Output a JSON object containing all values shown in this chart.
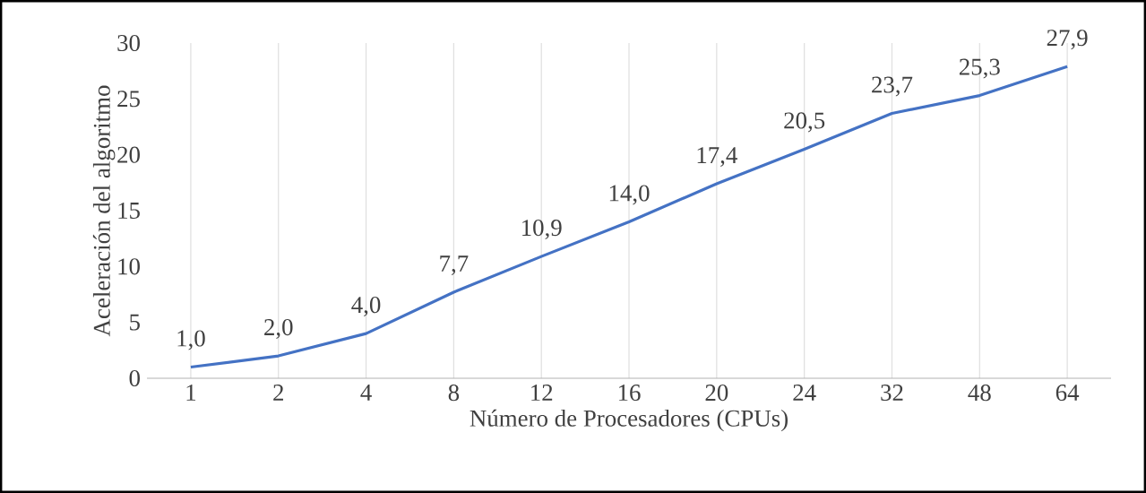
{
  "chart_data": {
    "type": "line",
    "xlabel": "Número de Procesadores (CPUs)",
    "ylabel": "Aceleración del algoritmo",
    "categories": [
      "1",
      "2",
      "4",
      "8",
      "12",
      "16",
      "20",
      "24",
      "32",
      "48",
      "64"
    ],
    "values": [
      1.0,
      2.0,
      4.0,
      7.7,
      10.9,
      14.0,
      17.4,
      20.5,
      23.7,
      25.3,
      27.9
    ],
    "value_labels": [
      "1,0",
      "2,0",
      "4,0",
      "7,7",
      "10,9",
      "14,0",
      "17,4",
      "20,5",
      "23,7",
      "25,3",
      "27,9"
    ],
    "color": "#4472c4",
    "ylim": [
      0,
      30
    ],
    "yticks": [
      0,
      5,
      10,
      15,
      20,
      25,
      30
    ],
    "grid": "x",
    "marker": "none",
    "line_style": "solid"
  }
}
